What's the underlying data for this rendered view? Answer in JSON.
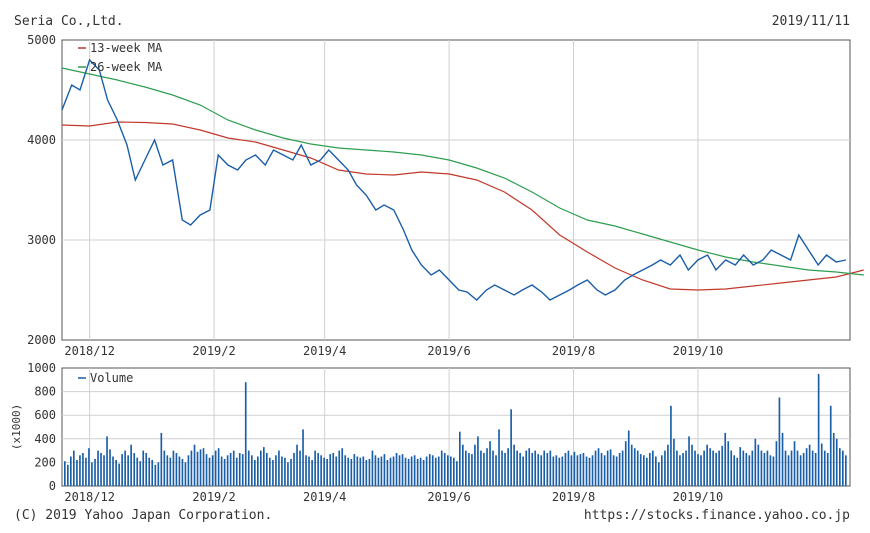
{
  "header": {
    "company": "Seria Co.,Ltd.",
    "date": "2019/11/11"
  },
  "footer": {
    "copyright": "(C) 2019 Yahoo Japan Corporation.",
    "source": "https://stocks.finance.yahoo.co.jp"
  },
  "colors": {
    "price": "#1a5ea8",
    "ma13": "#c0392b",
    "ma26": "#2e9e4f",
    "volume": "#1a5ea8",
    "grid": "#d0d0d0",
    "axis": "#555555"
  },
  "chart_data": [
    {
      "type": "line",
      "x_ticks": [
        {
          "label": "2018/12",
          "week": 2
        },
        {
          "label": "2019/2",
          "week": 11
        },
        {
          "label": "2019/4",
          "week": 19
        },
        {
          "label": "2019/6",
          "week": 28
        },
        {
          "label": "2019/8",
          "week": 37
        },
        {
          "label": "2019/10",
          "week": 46
        }
      ],
      "ylim": [
        2000,
        5000
      ],
      "y_ticks": [
        "5000",
        "4000",
        "3000",
        "2000"
      ],
      "grid": true,
      "legend": [
        "13-week MA",
        "26-week MA"
      ],
      "series": [
        {
          "name": "13-week MA",
          "color": "#c0392b",
          "points": [
            [
              0,
              4150
            ],
            [
              2,
              4140
            ],
            [
              4,
              4180
            ],
            [
              6,
              4175
            ],
            [
              8,
              4160
            ],
            [
              10,
              4100
            ],
            [
              12,
              4020
            ],
            [
              14,
              3980
            ],
            [
              16,
              3900
            ],
            [
              18,
              3820
            ],
            [
              20,
              3700
            ],
            [
              22,
              3660
            ],
            [
              24,
              3650
            ],
            [
              26,
              3680
            ],
            [
              28,
              3660
            ],
            [
              30,
              3600
            ],
            [
              32,
              3480
            ],
            [
              34,
              3300
            ],
            [
              36,
              3050
            ],
            [
              38,
              2880
            ],
            [
              40,
              2720
            ],
            [
              42,
              2600
            ],
            [
              44,
              2510
            ],
            [
              46,
              2500
            ],
            [
              48,
              2510
            ],
            [
              50,
              2540
            ],
            [
              52,
              2570
            ],
            [
              54,
              2600
            ],
            [
              56,
              2630
            ],
            [
              58,
              2700
            ]
          ]
        },
        {
          "name": "26-week MA",
          "color": "#2e9e4f",
          "points": [
            [
              0,
              4720
            ],
            [
              2,
              4660
            ],
            [
              4,
              4600
            ],
            [
              6,
              4530
            ],
            [
              8,
              4450
            ],
            [
              10,
              4350
            ],
            [
              12,
              4200
            ],
            [
              14,
              4100
            ],
            [
              16,
              4020
            ],
            [
              18,
              3960
            ],
            [
              20,
              3920
            ],
            [
              22,
              3900
            ],
            [
              24,
              3880
            ],
            [
              26,
              3850
            ],
            [
              28,
              3800
            ],
            [
              30,
              3720
            ],
            [
              32,
              3620
            ],
            [
              34,
              3480
            ],
            [
              36,
              3320
            ],
            [
              38,
              3200
            ],
            [
              40,
              3140
            ],
            [
              42,
              3060
            ],
            [
              44,
              2980
            ],
            [
              46,
              2900
            ],
            [
              48,
              2830
            ],
            [
              50,
              2780
            ],
            [
              52,
              2740
            ],
            [
              54,
              2700
            ],
            [
              56,
              2680
            ],
            [
              58,
              2650
            ]
          ]
        },
        {
          "name": "",
          "color": "#1a5ea8",
          "points": [
            [
              0,
              4300
            ],
            [
              0.7,
              4550
            ],
            [
              1.3,
              4500
            ],
            [
              2,
              4800
            ],
            [
              2.7,
              4700
            ],
            [
              3.3,
              4400
            ],
            [
              4,
              4200
            ],
            [
              4.7,
              3950
            ],
            [
              5.3,
              3600
            ],
            [
              6,
              3800
            ],
            [
              6.7,
              4000
            ],
            [
              7.3,
              3750
            ],
            [
              8,
              3800
            ],
            [
              8.7,
              3200
            ],
            [
              9.3,
              3150
            ],
            [
              10,
              3250
            ],
            [
              10.7,
              3300
            ],
            [
              11.3,
              3850
            ],
            [
              12,
              3750
            ],
            [
              12.7,
              3700
            ],
            [
              13.3,
              3800
            ],
            [
              14,
              3850
            ],
            [
              14.7,
              3750
            ],
            [
              15.3,
              3900
            ],
            [
              16,
              3850
            ],
            [
              16.7,
              3800
            ],
            [
              17.3,
              3950
            ],
            [
              18,
              3750
            ],
            [
              18.7,
              3800
            ],
            [
              19.3,
              3900
            ],
            [
              20,
              3800
            ],
            [
              20.7,
              3700
            ],
            [
              21.3,
              3550
            ],
            [
              22,
              3450
            ],
            [
              22.7,
              3300
            ],
            [
              23.3,
              3350
            ],
            [
              24,
              3300
            ],
            [
              24.7,
              3100
            ],
            [
              25.3,
              2900
            ],
            [
              26,
              2750
            ],
            [
              26.7,
              2650
            ],
            [
              27.3,
              2700
            ],
            [
              28,
              2600
            ],
            [
              28.7,
              2500
            ],
            [
              29.3,
              2480
            ],
            [
              30,
              2400
            ],
            [
              30.7,
              2500
            ],
            [
              31.3,
              2550
            ],
            [
              32,
              2500
            ],
            [
              32.7,
              2450
            ],
            [
              33.3,
              2500
            ],
            [
              34,
              2550
            ],
            [
              34.7,
              2480
            ],
            [
              35.3,
              2400
            ],
            [
              36,
              2450
            ],
            [
              36.7,
              2500
            ],
            [
              37.3,
              2550
            ],
            [
              38,
              2600
            ],
            [
              38.7,
              2500
            ],
            [
              39.3,
              2450
            ],
            [
              40,
              2500
            ],
            [
              40.7,
              2600
            ],
            [
              41.3,
              2650
            ],
            [
              42,
              2700
            ],
            [
              42.7,
              2750
            ],
            [
              43.3,
              2800
            ],
            [
              44,
              2750
            ],
            [
              44.7,
              2850
            ],
            [
              45.3,
              2700
            ],
            [
              46,
              2800
            ],
            [
              46.7,
              2850
            ],
            [
              47.3,
              2700
            ],
            [
              48,
              2800
            ],
            [
              48.7,
              2750
            ],
            [
              49.3,
              2850
            ],
            [
              50,
              2750
            ],
            [
              50.7,
              2800
            ],
            [
              51.3,
              2900
            ],
            [
              52,
              2850
            ],
            [
              52.7,
              2800
            ],
            [
              53.3,
              3050
            ],
            [
              54,
              2900
            ],
            [
              54.7,
              2750
            ],
            [
              55.3,
              2850
            ],
            [
              56,
              2780
            ],
            [
              56.7,
              2800
            ]
          ]
        }
      ]
    },
    {
      "type": "bar",
      "x_ticks": [
        "2018/12",
        "2019/2",
        "2019/4",
        "2019/6",
        "2019/8",
        "2019/10"
      ],
      "ylim": [
        0,
        1000
      ],
      "y_ticks": [
        "1000",
        "800",
        "600",
        "400",
        "200",
        "0"
      ],
      "ylabel": "(x1000)",
      "legend": [
        "Volume"
      ],
      "series": [
        {
          "name": "Volume",
          "color": "#1a5ea8",
          "values": [
            210,
            180,
            250,
            300,
            220,
            260,
            280,
            240,
            320,
            200,
            230,
            300,
            280,
            260,
            420,
            310,
            250,
            220,
            190,
            270,
            300,
            260,
            350,
            280,
            240,
            210,
            300,
            280,
            240,
            220,
            180,
            200,
            450,
            300,
            260,
            240,
            300,
            280,
            250,
            230,
            200,
            260,
            300,
            350,
            290,
            310,
            320,
            270,
            240,
            260,
            300,
            320,
            250,
            230,
            260,
            280,
            300,
            240,
            280,
            270,
            880,
            300,
            260,
            220,
            250,
            300,
            330,
            280,
            240,
            220,
            260,
            300,
            250,
            240,
            200,
            230,
            280,
            350,
            300,
            480,
            260,
            250,
            220,
            300,
            280,
            260,
            240,
            230,
            270,
            280,
            250,
            300,
            320,
            260,
            240,
            230,
            270,
            250,
            240,
            250,
            220,
            230,
            300,
            260,
            240,
            250,
            270,
            220,
            240,
            250,
            280,
            260,
            270,
            240,
            230,
            250,
            260,
            230,
            240,
            220,
            250,
            270,
            260,
            240,
            250,
            300,
            280,
            260,
            250,
            240,
            210,
            460,
            350,
            300,
            280,
            270,
            350,
            420,
            300,
            280,
            320,
            380,
            300,
            260,
            480,
            300,
            280,
            320,
            650,
            350,
            300,
            280,
            250,
            300,
            320,
            280,
            300,
            270,
            260,
            300,
            280,
            300,
            250,
            260,
            240,
            250,
            280,
            300,
            260,
            290,
            260,
            270,
            280,
            250,
            240,
            260,
            300,
            320,
            280,
            260,
            300,
            310,
            260,
            250,
            280,
            300,
            380,
            470,
            350,
            320,
            300,
            270,
            260,
            240,
            280,
            300,
            250,
            200,
            260,
            300,
            350,
            680,
            400,
            300,
            260,
            280,
            300,
            420,
            350,
            300,
            270,
            260,
            300,
            350,
            320,
            300,
            280,
            300,
            340,
            450,
            380,
            300,
            260,
            240,
            330,
            300,
            280,
            260,
            300,
            400,
            350,
            300,
            280,
            300,
            260,
            250,
            380,
            750,
            450,
            300,
            260,
            300,
            380,
            300,
            260,
            280,
            320,
            350,
            300,
            280,
            950,
            360,
            300,
            280,
            680,
            450,
            400,
            320,
            300,
            260
          ]
        }
      ]
    }
  ]
}
